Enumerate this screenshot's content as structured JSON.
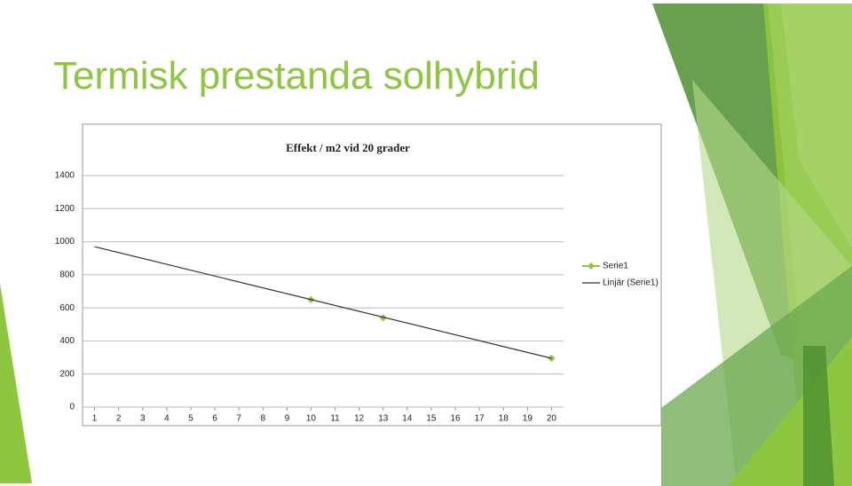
{
  "title": "Termisk prestanda solhybrid",
  "chart_data": {
    "type": "line",
    "title": "Effekt / m2 vid 20 grader",
    "xlim": [
      0.5,
      20.5
    ],
    "xticks": [
      1,
      2,
      3,
      4,
      5,
      6,
      7,
      8,
      9,
      10,
      11,
      12,
      13,
      14,
      15,
      16,
      17,
      18,
      19,
      20
    ],
    "ylim": [
      0,
      1400
    ],
    "yticks": [
      0,
      200,
      400,
      600,
      800,
      1000,
      1200,
      1400
    ],
    "grid": true,
    "legend": "right",
    "series": [
      {
        "name": "Serie1",
        "color": "#8cc63f",
        "x": [
          10,
          13,
          20
        ],
        "values": [
          650,
          540,
          295
        ]
      },
      {
        "name": "Linjär (Serie1)",
        "color": "#333333",
        "x": [
          1,
          20
        ],
        "values": [
          970,
          295
        ]
      }
    ]
  }
}
